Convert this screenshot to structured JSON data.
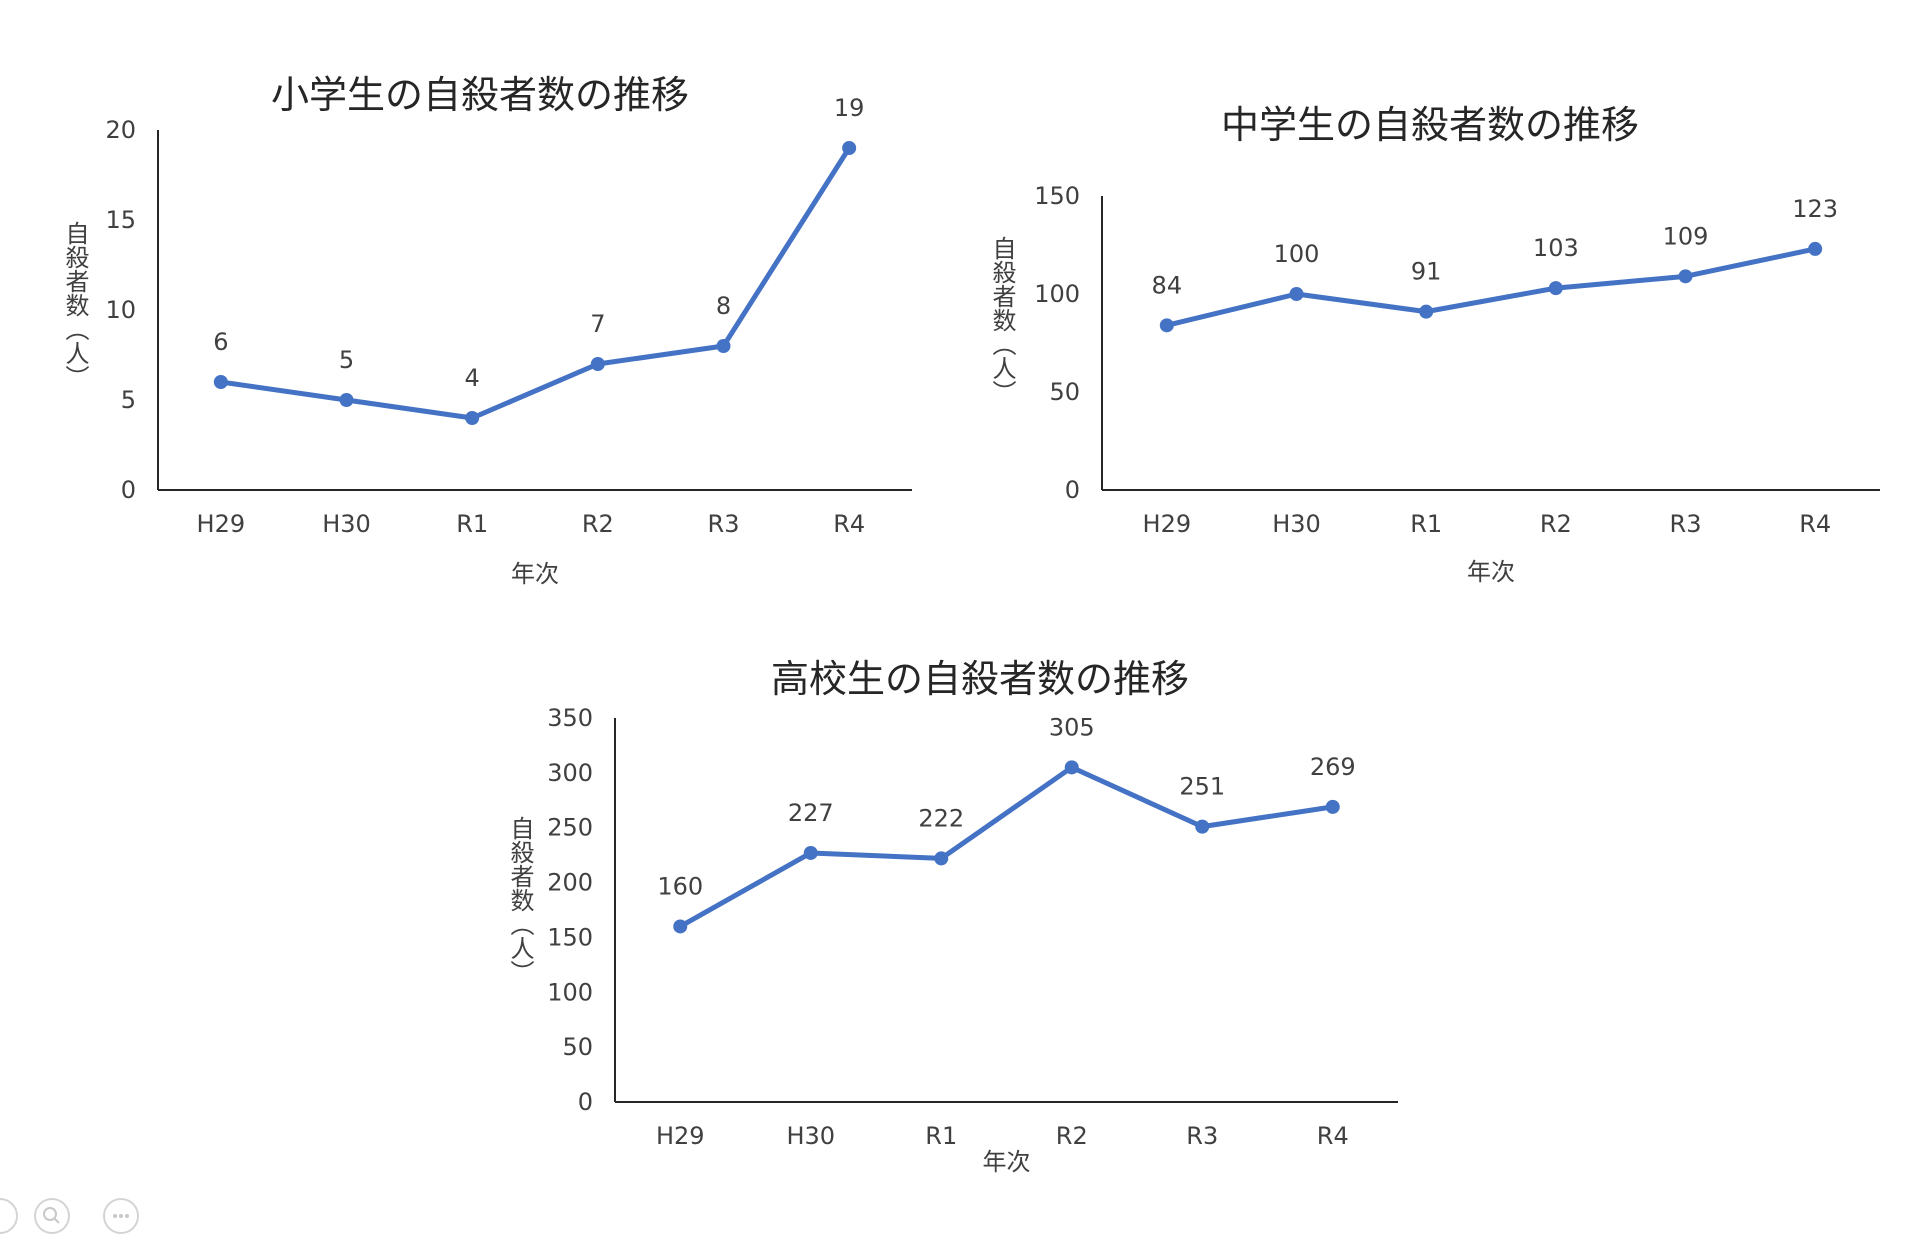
{
  "chart_data": [
    {
      "type": "line",
      "title": "小学生の自殺者数の推移",
      "xlabel": "年次",
      "ylabel": "自殺者数（人）",
      "categories": [
        "H29",
        "H30",
        "R1",
        "R2",
        "R3",
        "R4"
      ],
      "series": [
        {
          "values": [
            6,
            5,
            4,
            7,
            8,
            19
          ]
        }
      ],
      "ylim": [
        0,
        20
      ],
      "yticks": [
        0,
        5,
        10,
        15,
        20
      ],
      "grid": false,
      "color": "#4472C4"
    },
    {
      "type": "line",
      "title": "中学生の自殺者数の推移",
      "xlabel": "年次",
      "ylabel": "自殺者数（人）",
      "categories": [
        "H29",
        "H30",
        "R1",
        "R2",
        "R3",
        "R4"
      ],
      "series": [
        {
          "values": [
            84,
            100,
            91,
            103,
            109,
            123
          ]
        }
      ],
      "ylim": [
        0,
        150
      ],
      "yticks": [
        0,
        50,
        100,
        150
      ],
      "grid": false,
      "color": "#4472C4"
    },
    {
      "type": "line",
      "title": "高校生の自殺者数の推移",
      "xlabel": "年次",
      "ylabel": "自殺者数（人）",
      "categories": [
        "H29",
        "H30",
        "R1",
        "R2",
        "R3",
        "R4"
      ],
      "series": [
        {
          "values": [
            160,
            227,
            222,
            305,
            251,
            269
          ]
        }
      ],
      "ylim": [
        0,
        350
      ],
      "yticks": [
        0,
        50,
        100,
        150,
        200,
        250,
        300,
        350
      ],
      "grid": false,
      "color": "#4472C4"
    }
  ],
  "toolbar": {
    "buttons": [
      {
        "icon": "slide-nav-icon"
      },
      {
        "icon": "zoom-icon"
      },
      {
        "icon": "more-options-icon"
      }
    ]
  }
}
